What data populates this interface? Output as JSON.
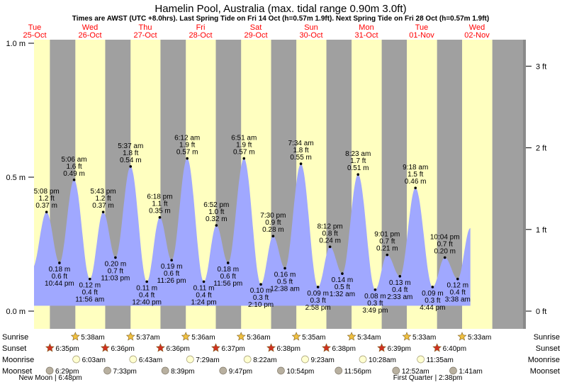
{
  "title": "Hamelin Pool, Australia (max. tidal range 0.90m 3.0ft)",
  "subtitle": "Times are AWST (UTC +8.0hrs). Last Spring Tide on Fri 14 Oct (h=0.57m 1.9ft). Next Spring Tide on Fri 28 Oct (h=0.57m 1.9ft)",
  "days": [
    {
      "dow": "Tue",
      "date": "25-Oct"
    },
    {
      "dow": "Wed",
      "date": "26-Oct"
    },
    {
      "dow": "Thu",
      "date": "27-Oct"
    },
    {
      "dow": "Fri",
      "date": "28-Oct"
    },
    {
      "dow": "Sat",
      "date": "29-Oct"
    },
    {
      "dow": "Sun",
      "date": "30-Oct"
    },
    {
      "dow": "Mon",
      "date": "31-Oct"
    },
    {
      "dow": "Tue",
      "date": "01-Nov"
    },
    {
      "dow": "Wed",
      "date": "02-Nov"
    }
  ],
  "colors": {
    "day": "#ffffc0",
    "night": "#a0a0a0",
    "water": "#a0a8ff",
    "date_text": "#ff0000",
    "sunrise": "#f0c040",
    "sunset": "#d03020",
    "moonrise": "#ffffd0",
    "moonset": "#b8b0a0"
  },
  "chart_data": {
    "type": "area",
    "title": "Hamelin Pool, Australia (max. tidal range 0.90m 3.0ft)",
    "time_unit": "hours since 25-Oct 00:00",
    "x_range": [
      0,
      216
    ],
    "y_range_m": [
      0.0,
      1.0
    ],
    "y_ticks_m": [
      "1.0 m",
      "0.5 m",
      "0.0 m"
    ],
    "y_ticks_m_values": [
      1.0,
      0.5,
      0.0
    ],
    "y_ticks_ft": [
      "3 ft",
      "2 ft",
      "1 ft",
      "0 ft"
    ],
    "y_ticks_ft_values": [
      3,
      2,
      1,
      0
    ],
    "baseline_m": 0.02,
    "nights": [
      [
        -24,
        5.7
      ],
      [
        18.58,
        29.63
      ],
      [
        42.6,
        53.62
      ],
      [
        66.6,
        77.6
      ],
      [
        90.62,
        101.6
      ],
      [
        114.63,
        125.58
      ],
      [
        138.63,
        149.57
      ],
      [
        162.65,
        173.55
      ],
      [
        186.67,
        197.55
      ],
      [
        210.67,
        240
      ]
    ],
    "tides": [
      {
        "time": "5:08 pm",
        "h": 0.37,
        "ft": "1.2 ft",
        "m": "0.37 m",
        "type": "high",
        "t": 17.13
      },
      {
        "time": "10:44 pm",
        "h": 0.18,
        "ft": "0.6 ft",
        "m": "0.18 m",
        "type": "low",
        "t": 22.73
      },
      {
        "time": "5:06 am",
        "h": 0.49,
        "ft": "1.6 ft",
        "m": "0.49 m",
        "type": "high",
        "t": 29.1
      },
      {
        "time": "11:56 am",
        "h": 0.12,
        "ft": "0.4 ft",
        "m": "0.12 m",
        "type": "low",
        "t": 35.93
      },
      {
        "time": "5:43 pm",
        "h": 0.37,
        "ft": "1.2 ft",
        "m": "0.37 m",
        "type": "high",
        "t": 41.72
      },
      {
        "time": "11:03 pm",
        "h": 0.2,
        "ft": "0.7 ft",
        "m": "0.20 m",
        "type": "low",
        "t": 47.05
      },
      {
        "time": "5:37 am",
        "h": 0.54,
        "ft": "1.8 ft",
        "m": "0.54 m",
        "type": "high",
        "t": 53.62
      },
      {
        "time": "12:40 pm",
        "h": 0.11,
        "ft": "0.4 ft",
        "m": "0.11 m",
        "type": "low",
        "t": 60.67
      },
      {
        "time": "6:18 pm",
        "h": 0.35,
        "ft": "1.1 ft",
        "m": "0.35 m",
        "type": "high",
        "t": 66.3
      },
      {
        "time": "11:26 pm",
        "h": 0.19,
        "ft": "0.6 ft",
        "m": "0.19 m",
        "type": "low",
        "t": 71.43
      },
      {
        "time": "6:12 am",
        "h": 0.57,
        "ft": "1.9 ft",
        "m": "0.57 m",
        "type": "high",
        "t": 78.2
      },
      {
        "time": "1:24 pm",
        "h": 0.11,
        "ft": "0.4 ft",
        "m": "0.11 m",
        "type": "low",
        "t": 85.4
      },
      {
        "time": "6:52 pm",
        "h": 0.32,
        "ft": "1.0 ft",
        "m": "0.32 m",
        "type": "high",
        "t": 90.87
      },
      {
        "time": "11:56 pm",
        "h": 0.18,
        "ft": "0.6 ft",
        "m": "0.18 m",
        "type": "low",
        "t": 95.93
      },
      {
        "time": "6:51 am",
        "h": 0.57,
        "ft": "1.9 ft",
        "m": "0.57 m",
        "type": "high",
        "t": 102.85
      },
      {
        "time": "2:10 pm",
        "h": 0.1,
        "ft": "0.3 ft",
        "m": "0.10 m",
        "type": "low",
        "t": 110.17
      },
      {
        "time": "7:30 pm",
        "h": 0.28,
        "ft": "0.9 ft",
        "m": "0.28 m",
        "type": "high",
        "t": 115.5
      },
      {
        "time": "12:38 am",
        "h": 0.16,
        "ft": "0.5 ft",
        "m": "0.16 m",
        "type": "low",
        "t": 120.63
      },
      {
        "time": "7:34 am",
        "h": 0.55,
        "ft": "1.8 ft",
        "m": "0.55 m",
        "type": "high",
        "t": 127.57
      },
      {
        "time": "2:58 pm",
        "h": 0.09,
        "ft": "0.3 ft",
        "m": "0.09 m",
        "type": "low",
        "t": 134.97
      },
      {
        "time": "8:12 pm",
        "h": 0.24,
        "ft": "0.8 ft",
        "m": "0.24 m",
        "type": "high",
        "t": 140.2
      },
      {
        "time": "1:32 am",
        "h": 0.14,
        "ft": "0.5 ft",
        "m": "0.14 m",
        "type": "low",
        "t": 145.53
      },
      {
        "time": "8:23 am",
        "h": 0.51,
        "ft": "1.7 ft",
        "m": "0.51 m",
        "type": "high",
        "t": 152.38
      },
      {
        "time": "3:49 pm",
        "h": 0.08,
        "ft": "0.3 ft",
        "m": "0.08 m",
        "type": "low",
        "t": 159.82
      },
      {
        "time": "9:01 pm",
        "h": 0.21,
        "ft": "0.7 ft",
        "m": "0.21 m",
        "type": "high",
        "t": 165.02
      },
      {
        "time": "2:33 am",
        "h": 0.13,
        "ft": "0.4 ft",
        "m": "0.13 m",
        "type": "low",
        "t": 170.55
      },
      {
        "time": "9:18 am",
        "h": 0.46,
        "ft": "1.5 ft",
        "m": "0.46 m",
        "type": "high",
        "t": 177.3
      },
      {
        "time": "4:44 pm",
        "h": 0.09,
        "ft": "0.3 ft",
        "m": "0.09 m",
        "type": "low",
        "t": 184.73
      },
      {
        "time": "10:04 pm",
        "h": 0.2,
        "ft": "0.7 ft",
        "m": "0.20 m",
        "type": "high",
        "t": 190.07
      },
      {
        "time": "3:38 am",
        "h": 0.12,
        "ft": "0.4 ft",
        "m": "0.12 m",
        "type": "low",
        "t": 195.63
      }
    ]
  },
  "bottom_labels": {
    "sunrise": "Sunrise",
    "sunset": "Sunset",
    "moonrise": "Moonrise",
    "moonset": "Moonset"
  },
  "astro": {
    "sunrise": [
      {
        "time": "5:38am",
        "t": 29.63
      },
      {
        "time": "5:37am",
        "t": 53.62
      },
      {
        "time": "5:36am",
        "t": 77.6
      },
      {
        "time": "5:36am",
        "t": 101.6
      },
      {
        "time": "5:35am",
        "t": 125.58
      },
      {
        "time": "5:34am",
        "t": 149.57
      },
      {
        "time": "5:33am",
        "t": 173.55
      },
      {
        "time": "5:33am",
        "t": 197.55
      }
    ],
    "sunset": [
      {
        "time": "6:35pm",
        "t": 18.58
      },
      {
        "time": "6:36pm",
        "t": 42.6
      },
      {
        "time": "6:36pm",
        "t": 66.6
      },
      {
        "time": "6:37pm",
        "t": 90.62
      },
      {
        "time": "6:38pm",
        "t": 114.63
      },
      {
        "time": "6:38pm",
        "t": 138.63
      },
      {
        "time": "6:39pm",
        "t": 162.65
      },
      {
        "time": "6:40pm",
        "t": 186.67
      }
    ],
    "moonrise": [
      {
        "time": "6:03am",
        "t": 30.05
      },
      {
        "time": "6:43am",
        "t": 54.72
      },
      {
        "time": "7:29am",
        "t": 79.48
      },
      {
        "time": "8:22am",
        "t": 104.37
      },
      {
        "time": "9:23am",
        "t": 129.38
      },
      {
        "time": "10:28am",
        "t": 154.47
      },
      {
        "time": "11:35am",
        "t": 179.58
      }
    ],
    "moonset": [
      {
        "time": "6:29pm",
        "t": 18.48
      },
      {
        "time": "7:33pm",
        "t": 43.55
      },
      {
        "time": "8:39pm",
        "t": 68.65
      },
      {
        "time": "9:47pm",
        "t": 93.78
      },
      {
        "time": "10:54pm",
        "t": 118.9
      },
      {
        "time": "11:56pm",
        "t": 143.93
      },
      {
        "time": "12:52am",
        "t": 168.87
      },
      {
        "time": "1:41am",
        "t": 193.68
      }
    ]
  },
  "moon_phases": [
    {
      "label": "New Moon",
      "time": "6:48pm",
      "t": 18.8
    },
    {
      "label": "First Quarter",
      "time": "2:38pm",
      "t": 182.63
    }
  ]
}
